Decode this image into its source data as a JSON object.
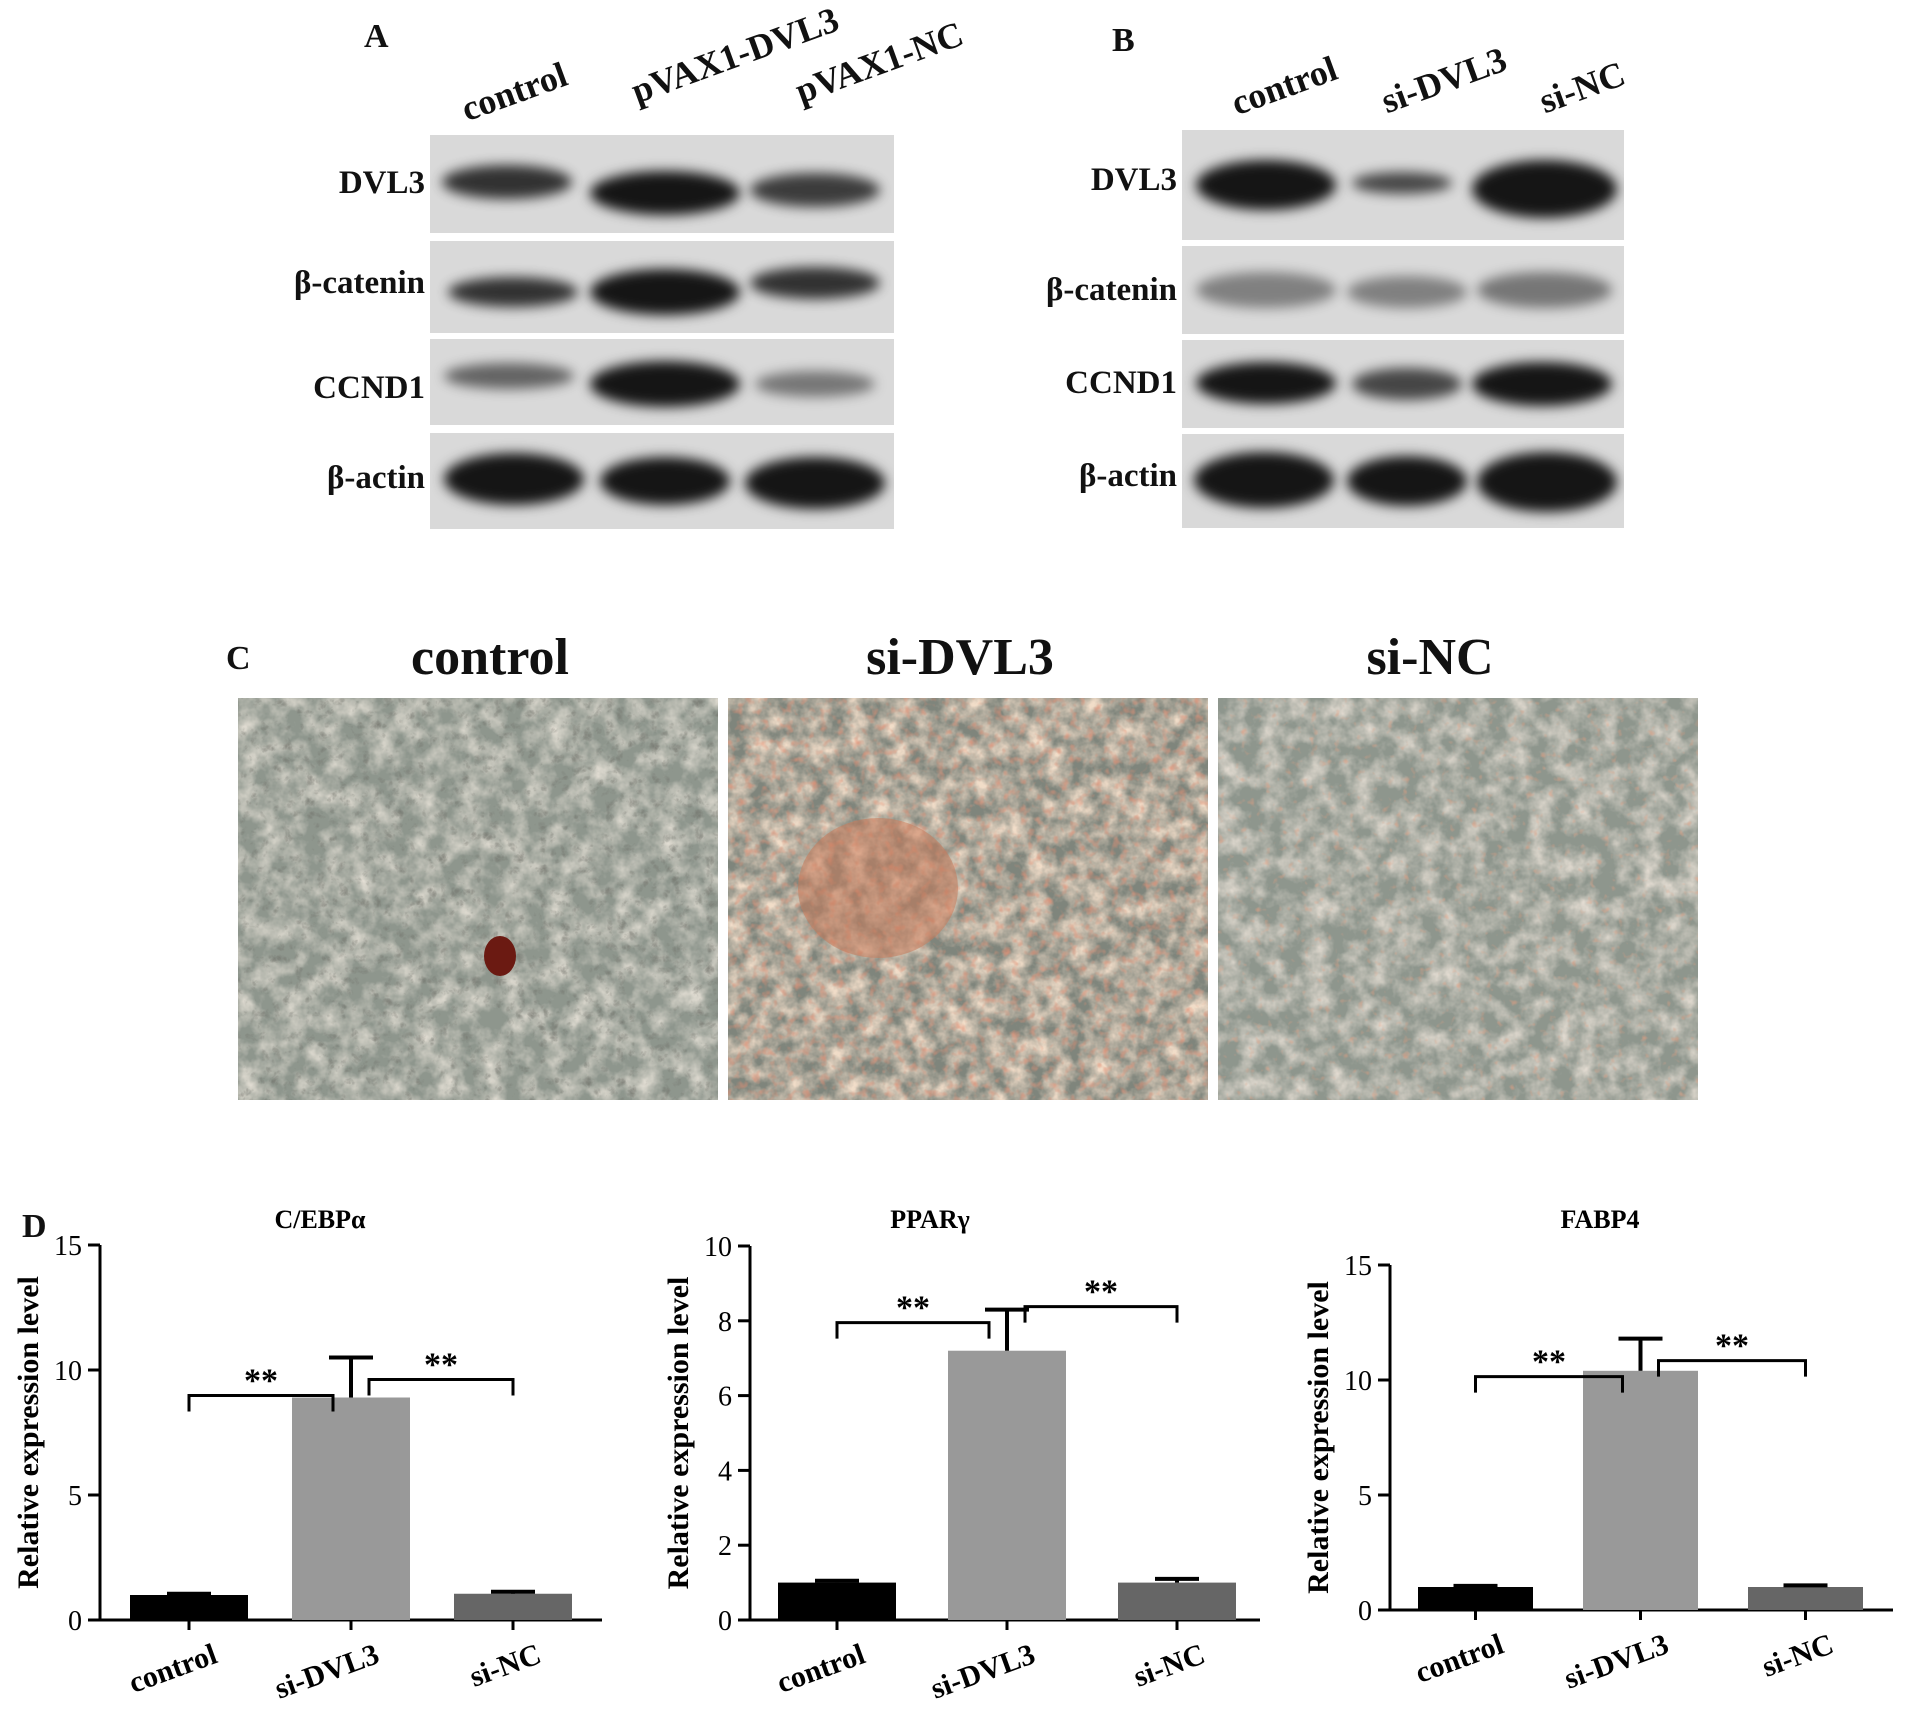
{
  "panel_a": {
    "letter": "A",
    "lanes": [
      "control",
      "pVAX1-DVL3",
      "pVAX1-NC"
    ],
    "proteins": [
      "DVL3",
      "β-catenin",
      "CCND1",
      "β-actin"
    ]
  },
  "panel_b": {
    "letter": "B",
    "lanes": [
      "control",
      "si-DVL3",
      "si-NC"
    ],
    "proteins": [
      "DVL3",
      "β-catenin",
      "CCND1",
      "β-actin"
    ]
  },
  "panel_c": {
    "letter": "C",
    "images": [
      "control",
      "si-DVL3",
      "si-NC"
    ]
  },
  "panel_d": {
    "letter": "D"
  },
  "chart_data": [
    {
      "type": "bar",
      "title": "C/EBPα",
      "ylabel": "Relative expression level",
      "categories": [
        "control",
        "si-DVL3",
        "si-NC"
      ],
      "values": [
        1.0,
        8.9,
        1.05
      ],
      "errors": [
        0.05,
        1.6,
        0.08
      ],
      "ylim": [
        0,
        15
      ],
      "yticks": [
        "0",
        "5",
        "10",
        "15"
      ],
      "bar_colors": [
        "#000000",
        "#999999",
        "#666666"
      ],
      "significance": [
        {
          "from": 0,
          "to": 1,
          "label": "**"
        },
        {
          "from": 1,
          "to": 2,
          "label": "**"
        }
      ]
    },
    {
      "type": "bar",
      "title": "PPARγ",
      "ylabel": "Relative expression level",
      "categories": [
        "control",
        "si-DVL3",
        "si-NC"
      ],
      "values": [
        1.0,
        7.2,
        1.0
      ],
      "errors": [
        0.05,
        1.1,
        0.1
      ],
      "ylim": [
        0,
        10
      ],
      "yticks": [
        "0",
        "2",
        "4",
        "6",
        "8",
        "10"
      ],
      "bar_colors": [
        "#000000",
        "#999999",
        "#666666"
      ],
      "significance": [
        {
          "from": 0,
          "to": 1,
          "label": "**"
        },
        {
          "from": 1,
          "to": 2,
          "label": "**"
        }
      ]
    },
    {
      "type": "bar",
      "title": "FABP4",
      "ylabel": "Relative expression level",
      "categories": [
        "control",
        "si-DVL3",
        "si-NC"
      ],
      "values": [
        1.0,
        10.4,
        1.0
      ],
      "errors": [
        0.05,
        1.4,
        0.07
      ],
      "ylim": [
        0,
        15
      ],
      "yticks": [
        "0",
        "5",
        "10",
        "15"
      ],
      "bar_colors": [
        "#000000",
        "#999999",
        "#666666"
      ],
      "significance": [
        {
          "from": 0,
          "to": 1,
          "label": "**"
        },
        {
          "from": 1,
          "to": 2,
          "label": "**"
        }
      ]
    }
  ]
}
